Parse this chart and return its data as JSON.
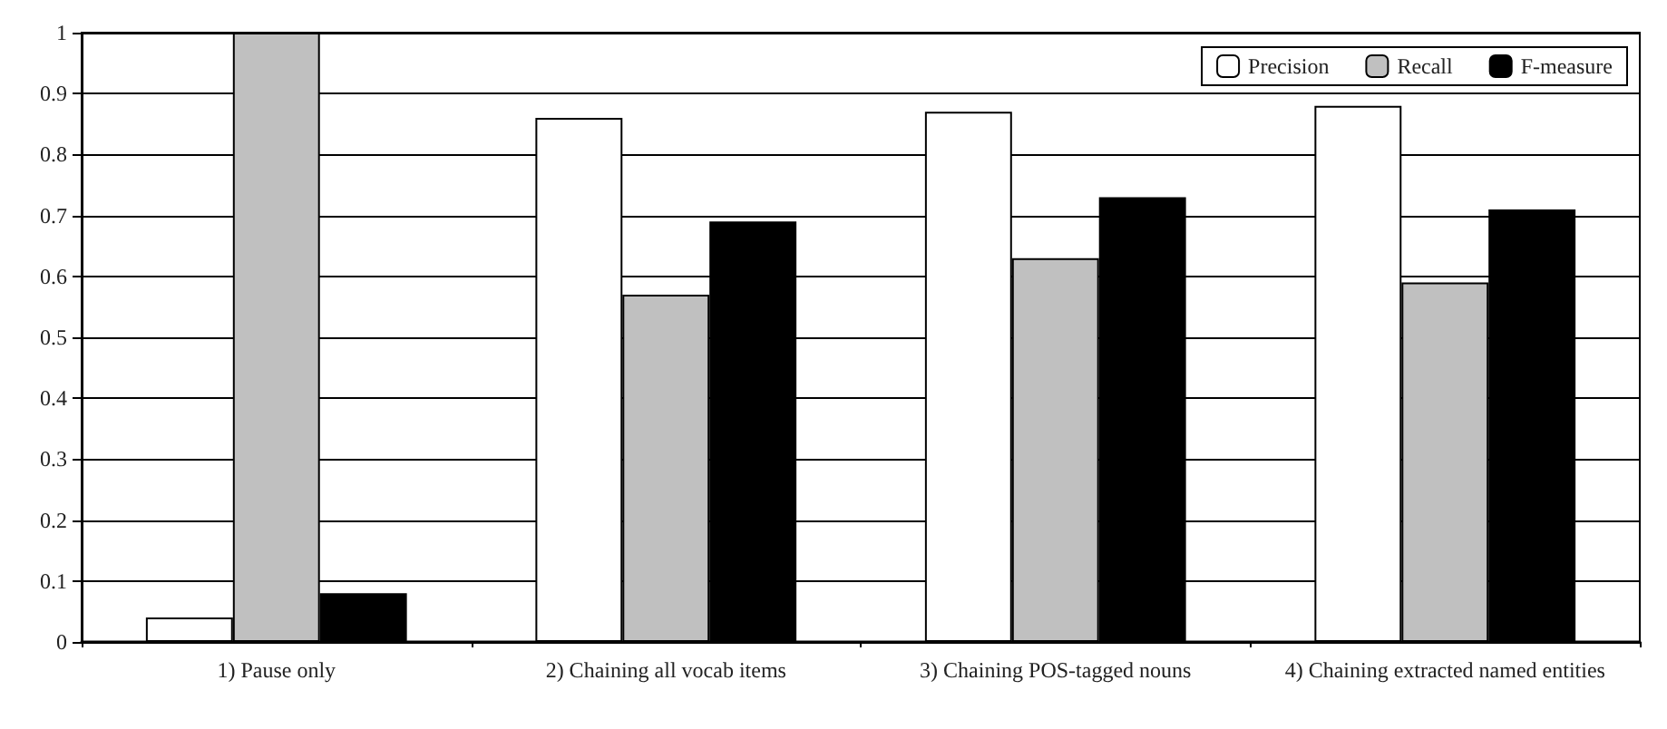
{
  "chart_data": {
    "type": "bar",
    "categories": [
      "1) Pause only",
      "2) Chaining all vocab items",
      "3) Chaining POS-tagged nouns",
      "4) Chaining extracted named entities"
    ],
    "series": [
      {
        "name": "Precision",
        "color": "#ffffff",
        "values": [
          0.04,
          0.86,
          0.87,
          0.88
        ]
      },
      {
        "name": "Recall",
        "color": "#c0c0c0",
        "values": [
          1.0,
          0.57,
          0.63,
          0.59
        ]
      },
      {
        "name": "F-measure",
        "color": "#000000",
        "values": [
          0.08,
          0.69,
          0.73,
          0.71
        ]
      }
    ],
    "ylim": [
      0,
      1
    ],
    "yticks": [
      0,
      0.1,
      0.2,
      0.3,
      0.4,
      0.5,
      0.6,
      0.7,
      0.8,
      0.9,
      1
    ],
    "grid": "y",
    "legend": "top right"
  }
}
